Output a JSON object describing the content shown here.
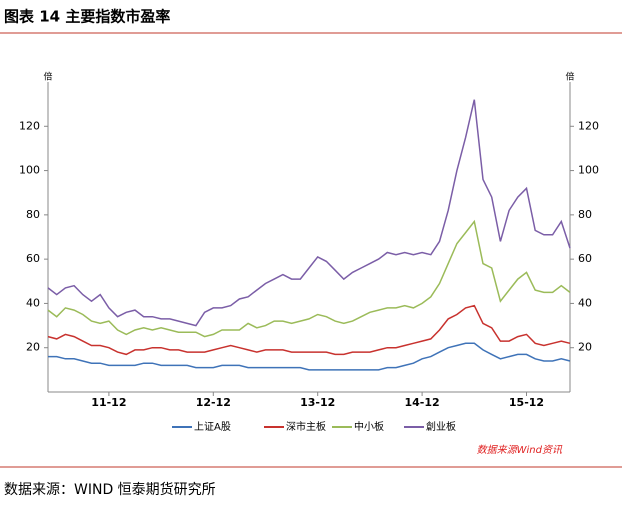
{
  "chart_data": {
    "type": "line",
    "title": "图表 14 主要指数市盈率",
    "y_label": "倍",
    "y2_label": "倍",
    "annotation": "数据来源Wind资讯",
    "categories": [
      null,
      null,
      null,
      null,
      null,
      null,
      null,
      "11-12",
      null,
      null,
      null,
      null,
      null,
      null,
      null,
      null,
      null,
      null,
      null,
      "12-12",
      null,
      null,
      null,
      null,
      null,
      null,
      null,
      null,
      null,
      null,
      null,
      "13-12",
      null,
      null,
      null,
      null,
      null,
      null,
      null,
      null,
      null,
      null,
      null,
      "14-12",
      null,
      null,
      null,
      null,
      null,
      null,
      null,
      null,
      null,
      null,
      null,
      "15-12",
      null,
      null,
      null,
      null,
      null
    ],
    "series": [
      {
        "name": "上证A股",
        "color": "#3f73b8",
        "values": [
          16,
          16,
          15,
          15,
          14,
          13,
          13,
          12,
          12,
          12,
          12,
          13,
          13,
          12,
          12,
          12,
          12,
          11,
          11,
          11,
          12,
          12,
          12,
          11,
          11,
          11,
          11,
          11,
          11,
          11,
          10,
          10,
          10,
          10,
          10,
          10,
          10,
          10,
          10,
          11,
          11,
          12,
          13,
          15,
          16,
          18,
          20,
          21,
          22,
          22,
          19,
          17,
          15,
          16,
          17,
          17,
          15,
          14,
          14,
          15,
          14
        ]
      },
      {
        "name": "深市主板",
        "color": "#c8322e",
        "values": [
          25,
          24,
          26,
          25,
          23,
          21,
          21,
          20,
          18,
          17,
          19,
          19,
          20,
          20,
          19,
          19,
          18,
          18,
          18,
          19,
          20,
          21,
          20,
          19,
          18,
          19,
          19,
          19,
          18,
          18,
          18,
          18,
          18,
          17,
          17,
          18,
          18,
          18,
          19,
          20,
          20,
          21,
          22,
          23,
          24,
          28,
          33,
          35,
          38,
          39,
          31,
          29,
          23,
          23,
          25,
          26,
          22,
          21,
          22,
          23,
          22
        ]
      },
      {
        "name": "中小板",
        "color": "#9bbb59",
        "values": [
          37,
          34,
          38,
          37,
          35,
          32,
          31,
          32,
          28,
          26,
          28,
          29,
          28,
          29,
          28,
          27,
          27,
          27,
          25,
          26,
          28,
          28,
          28,
          31,
          29,
          30,
          32,
          32,
          31,
          32,
          33,
          35,
          34,
          32,
          31,
          32,
          34,
          36,
          37,
          38,
          38,
          39,
          38,
          40,
          43,
          49,
          58,
          67,
          72,
          77,
          58,
          56,
          41,
          46,
          51,
          54,
          46,
          45,
          45,
          48,
          45
        ]
      },
      {
        "name": "創业板",
        "color": "#7b5ea7",
        "values": [
          47,
          44,
          47,
          48,
          44,
          41,
          44,
          38,
          34,
          36,
          37,
          34,
          34,
          33,
          33,
          32,
          31,
          30,
          36,
          38,
          38,
          39,
          42,
          43,
          46,
          49,
          51,
          53,
          51,
          51,
          56,
          61,
          59,
          55,
          51,
          54,
          56,
          58,
          60,
          63,
          62,
          63,
          62,
          63,
          62,
          68,
          82,
          100,
          115,
          132,
          96,
          88,
          68,
          82,
          88,
          92,
          73,
          71,
          71,
          77,
          65
        ]
      }
    ],
    "ylim": [
      0,
      140
    ],
    "yticks": [
      20,
      40,
      60,
      80,
      100,
      120
    ],
    "y2lim": [
      0,
      140
    ],
    "y2ticks": [
      20,
      40,
      60,
      80,
      100,
      120
    ]
  },
  "source": "数据来源：WIND 恒泰期货研究所"
}
